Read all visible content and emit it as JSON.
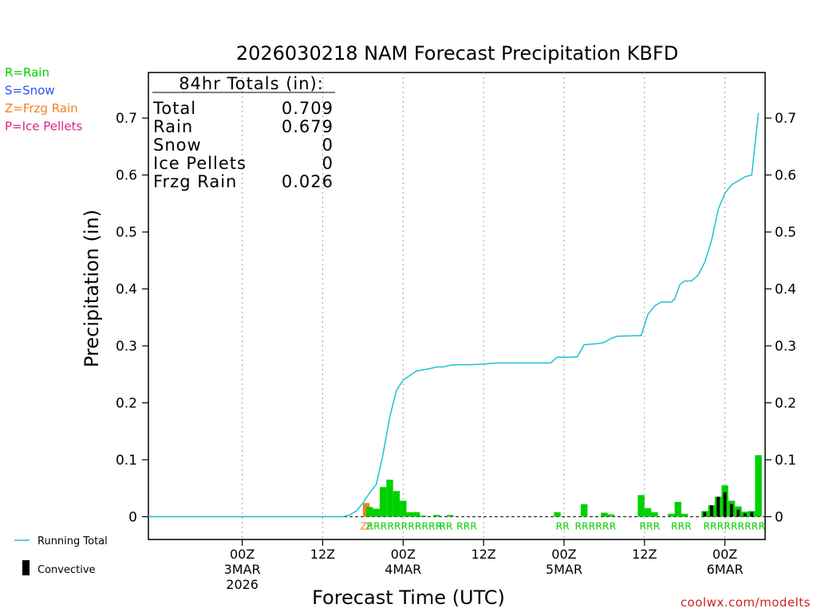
{
  "colors": {
    "rain": "#00d000",
    "snow": "#3050f0",
    "frzg": "#f08020",
    "ice": "#e0208a",
    "running": "#20c0d0",
    "convective": "#000000",
    "axis": "#000000",
    "brand": "#d02020"
  },
  "chart_data": {
    "type": "bar",
    "title": "2026030218 NAM Forecast Precipitation KBFD",
    "xlabel": "Forecast Time (UTC)",
    "ylabel": "Precipitation (in)",
    "ylim": [
      -0.04,
      0.78
    ],
    "xlim": [
      -8,
      84
    ],
    "yticks": [
      0,
      0.1,
      0.2,
      0.3,
      0.4,
      0.5,
      0.6,
      0.7
    ],
    "ytick_labels": [
      "0",
      "0.1",
      "0.2",
      "0.3",
      "0.4",
      "0.5",
      "0.6",
      "0.7"
    ],
    "x_units": "hours from init 2026-03-02 18Z",
    "x_gridlines": [
      6,
      18,
      30,
      42,
      54,
      66,
      78
    ],
    "x_ticks": [
      {
        "x": 6,
        "label": "00Z",
        "sub": "3MAR",
        "sub2": "2026"
      },
      {
        "x": 18,
        "label": "12Z",
        "sub": "",
        "sub2": ""
      },
      {
        "x": 30,
        "label": "00Z",
        "sub": "4MAR",
        "sub2": ""
      },
      {
        "x": 42,
        "label": "12Z",
        "sub": "",
        "sub2": ""
      },
      {
        "x": 54,
        "label": "00Z",
        "sub": "5MAR",
        "sub2": ""
      },
      {
        "x": 66,
        "label": "12Z",
        "sub": "",
        "sub2": ""
      },
      {
        "x": 78,
        "label": "00Z",
        "sub": "6MAR",
        "sub2": ""
      }
    ],
    "bar_width_hours": 1,
    "series": [
      {
        "name": "Frzg Rain",
        "color_key": "frzg",
        "points": [
          [
            24.5,
            0.024
          ]
        ]
      },
      {
        "name": "Rain",
        "color_key": "rain",
        "points": [
          [
            25,
            0.017
          ],
          [
            26,
            0.014
          ],
          [
            27,
            0.052
          ],
          [
            28,
            0.065
          ],
          [
            29,
            0.045
          ],
          [
            30,
            0.028
          ],
          [
            31,
            0.008
          ],
          [
            32,
            0.008
          ],
          [
            33,
            0.002
          ],
          [
            35,
            0.003
          ],
          [
            37,
            0.003
          ],
          [
            53,
            0.008
          ],
          [
            57,
            0.022
          ],
          [
            60,
            0.007
          ],
          [
            61,
            0.004
          ],
          [
            65.5,
            0.038
          ],
          [
            66.5,
            0.015
          ],
          [
            67.5,
            0.008
          ],
          [
            70,
            0.005
          ],
          [
            71,
            0.026
          ],
          [
            72,
            0.005
          ],
          [
            75,
            0.01
          ],
          [
            76,
            0.02
          ],
          [
            77,
            0.035
          ],
          [
            78,
            0.055
          ],
          [
            79,
            0.028
          ],
          [
            80,
            0.018
          ],
          [
            81,
            0.009
          ],
          [
            82,
            0.01
          ],
          [
            83,
            0.108
          ]
        ]
      },
      {
        "name": "Convective",
        "color_key": "convective",
        "points": [
          [
            75,
            0.008
          ],
          [
            76,
            0.02
          ],
          [
            77,
            0.035
          ],
          [
            78,
            0.043
          ],
          [
            79,
            0.022
          ],
          [
            80,
            0.012
          ],
          [
            81,
            0.006
          ],
          [
            82,
            0.008
          ]
        ]
      }
    ],
    "running_total": {
      "name": "Running Total",
      "points": [
        [
          -8,
          0
        ],
        [
          21,
          0
        ],
        [
          22,
          0.003
        ],
        [
          23,
          0.01
        ],
        [
          24,
          0.024
        ],
        [
          25,
          0.042
        ],
        [
          26,
          0.057
        ],
        [
          27,
          0.11
        ],
        [
          28,
          0.175
        ],
        [
          29,
          0.222
        ],
        [
          30,
          0.24
        ],
        [
          31,
          0.248
        ],
        [
          32,
          0.256
        ],
        [
          33,
          0.258
        ],
        [
          34,
          0.26
        ],
        [
          35,
          0.263
        ],
        [
          36,
          0.263
        ],
        [
          37,
          0.266
        ],
        [
          38,
          0.267
        ],
        [
          40,
          0.267
        ],
        [
          42,
          0.268
        ],
        [
          44,
          0.27
        ],
        [
          48,
          0.27
        ],
        [
          52,
          0.27
        ],
        [
          53,
          0.28
        ],
        [
          55,
          0.28
        ],
        [
          56,
          0.281
        ],
        [
          57,
          0.302
        ],
        [
          59,
          0.304
        ],
        [
          60,
          0.306
        ],
        [
          61,
          0.313
        ],
        [
          62,
          0.317
        ],
        [
          65,
          0.318
        ],
        [
          65.5,
          0.318
        ],
        [
          66.5,
          0.355
        ],
        [
          67.5,
          0.37
        ],
        [
          68.5,
          0.377
        ],
        [
          70,
          0.377
        ],
        [
          70.5,
          0.382
        ],
        [
          71.3,
          0.408
        ],
        [
          72,
          0.414
        ],
        [
          73,
          0.414
        ],
        [
          74,
          0.424
        ],
        [
          75,
          0.447
        ],
        [
          76,
          0.485
        ],
        [
          77,
          0.54
        ],
        [
          78,
          0.568
        ],
        [
          79,
          0.583
        ],
        [
          80,
          0.59
        ],
        [
          81,
          0.597
        ],
        [
          82,
          0.6
        ],
        [
          83,
          0.709
        ]
      ]
    },
    "type_labels": [
      {
        "x": 24.1,
        "text": "Z",
        "color_key": "frzg"
      },
      {
        "x": 24.9,
        "text": "Z",
        "color_key": "frzg"
      },
      {
        "x": 30.2,
        "text": "RRRRRRRRRRR",
        "color_key": "rain"
      },
      {
        "x": 36.4,
        "text": "RR",
        "color_key": "rain"
      },
      {
        "x": 39.5,
        "text": "RRR",
        "color_key": "rain"
      },
      {
        "x": 53.8,
        "text": "RR",
        "color_key": "rain"
      },
      {
        "x": 58.7,
        "text": "RRRRRR",
        "color_key": "rain"
      },
      {
        "x": 66.8,
        "text": "RRR",
        "color_key": "rain"
      },
      {
        "x": 71.5,
        "text": "RRR",
        "color_key": "rain"
      },
      {
        "x": 79.4,
        "text": "RRRRRRRRR",
        "color_key": "rain"
      }
    ],
    "totals": {
      "heading": "84hr Totals (in):",
      "rows": [
        {
          "label": "Total",
          "value": "0.709"
        },
        {
          "label": "Rain",
          "value": "0.679"
        },
        {
          "label": "Snow",
          "value": "0"
        },
        {
          "label": "Ice Pellets",
          "value": "0"
        },
        {
          "label": "Frzg Rain",
          "value": "0.026"
        }
      ]
    }
  },
  "type_legend": [
    {
      "text": "R=Rain",
      "color_key": "rain"
    },
    {
      "text": "S=Snow",
      "color_key": "snow"
    },
    {
      "text": "Z=Frzg Rain",
      "color_key": "frzg"
    },
    {
      "text": "P=Ice Pellets",
      "color_key": "ice"
    }
  ],
  "bottom_legend": {
    "running_total": "Running Total",
    "convective": "Convective"
  },
  "watermark": "coolwx.com/modelts"
}
